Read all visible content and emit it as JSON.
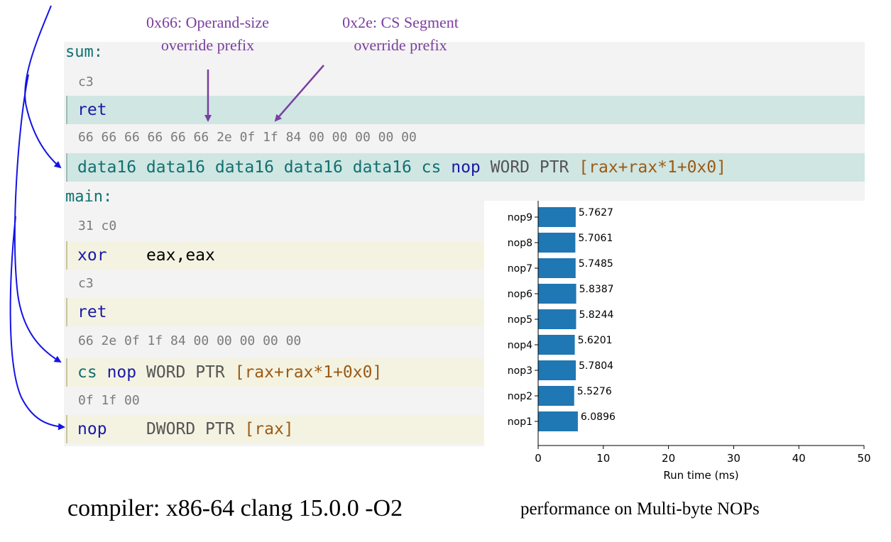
{
  "annotations": {
    "operand_size_line1": "0x66: Operand-size",
    "operand_size_line2": "override prefix",
    "cs_segment_line1": "0x2e: CS Segment",
    "cs_segment_line2": "override prefix"
  },
  "listing": {
    "sum_label": "sum:",
    "sum_bytes_1": "c3",
    "sum_ret": "ret",
    "sum_bytes_2": "66 66 66 66 66 66 2e 0f 1f 84 00 00 00 00 00",
    "sum_nop_prefix": "data16 data16 data16 data16 data16 cs",
    "sum_nop_mnemonic": "nop",
    "sum_nop_type": "WORD PTR",
    "sum_nop_operand": "[rax+rax*1+0x0]",
    "main_label": "main:",
    "main_bytes_1": "31 c0",
    "main_xor": "xor",
    "main_xor_operands": "eax,eax",
    "main_bytes_2": "c3",
    "main_ret": "ret",
    "main_bytes_3": "66 2e 0f 1f 84 00 00 00 00 00",
    "main_cs": "cs",
    "main_nop1": "nop",
    "main_nop1_type": "WORD PTR",
    "main_nop1_operand": "[rax+rax*1+0x0]",
    "main_bytes_4": "0f 1f 00",
    "main_nop2": "nop",
    "main_nop2_type": "DWORD PTR",
    "main_nop2_operand": "[rax]"
  },
  "captions": {
    "compiler": "compiler: x86-64 clang 15.0.0 -O2",
    "performance": "performance on Multi-byte NOPs"
  },
  "colors": {
    "bar": "#1f77b4",
    "arrow_blue": "#1414e6",
    "arrow_purple": "#7b3fa0"
  },
  "chart_data": {
    "type": "bar",
    "orientation": "horizontal",
    "categories": [
      "nop9",
      "nop8",
      "nop7",
      "nop6",
      "nop5",
      "nop4",
      "nop3",
      "nop2",
      "nop1"
    ],
    "values": [
      5.7627,
      5.7061,
      5.7485,
      5.8387,
      5.8244,
      5.6201,
      5.7804,
      5.5276,
      6.0896
    ],
    "value_labels": [
      "5.7627",
      "5.7061",
      "5.7485",
      "5.8387",
      "5.8244",
      "5.6201",
      "5.7804",
      "5.5276",
      "6.0896"
    ],
    "xlabel": "Run time (ms)",
    "xlim": [
      0,
      50
    ],
    "xticks": [
      "0",
      "10",
      "20",
      "30",
      "40",
      "50"
    ],
    "grid": false
  }
}
